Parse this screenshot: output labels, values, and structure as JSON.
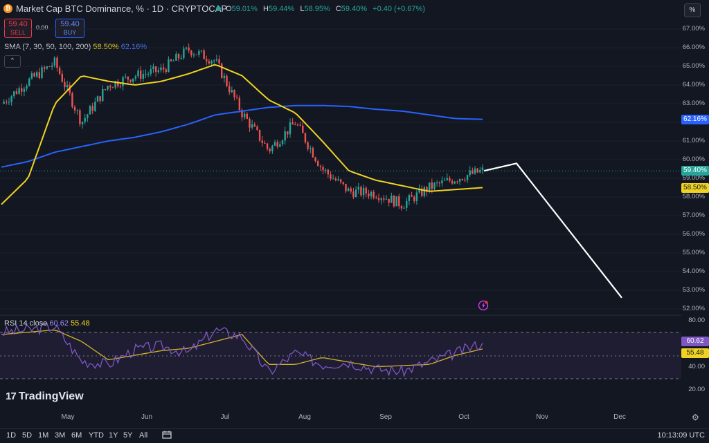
{
  "header": {
    "coin_glyph": "₿",
    "symbol_title": "Market Cap BTC Dominance, % · 1D · CRYPTOCAP",
    "ohlc": [
      {
        "k": "O",
        "v": "59.01%"
      },
      {
        "k": "H",
        "v": "59.44%"
      },
      {
        "k": "L",
        "v": "58.95%"
      },
      {
        "k": "C",
        "v": "59.40%"
      },
      {
        "k": "",
        "v": "+0.40 (+0.67%)"
      }
    ]
  },
  "trade": {
    "sell_price": "59.40",
    "sell_label": "SELL",
    "spread": "0.00",
    "buy_price": "59.40",
    "buy_label": "BUY"
  },
  "indicators": {
    "sma_label": "SMA (7, 30, 50, 100, 200)",
    "sma_value_1": "58.50%",
    "sma_value_2": "62.16%",
    "collapse_glyph": "⌃",
    "rsi_label": "RSI 14 close",
    "rsi_value": "60.62",
    "rsi_ma_value": "55.48"
  },
  "price_axis": {
    "unit_button": "%",
    "ticks": [
      "67.00%",
      "66.00%",
      "65.00%",
      "64.00%",
      "63.00%",
      "62.00%",
      "61.00%",
      "60.00%",
      "59.00%",
      "58.00%",
      "57.00%",
      "56.00%",
      "55.00%",
      "54.00%",
      "53.00%",
      "52.00%"
    ],
    "badges": [
      {
        "text": "62.16%",
        "color": "#2962ff"
      },
      {
        "text": "59.40%",
        "color": "#26a69a"
      },
      {
        "text": "58.50%",
        "color": "#f0d321"
      }
    ]
  },
  "rsi_axis": {
    "ticks": [
      "80.00",
      "40.00",
      "20.00"
    ],
    "badges": [
      {
        "text": "60.62",
        "color": "#7e57c2"
      },
      {
        "text": "55.48",
        "color": "#f0d321"
      }
    ]
  },
  "time_axis": [
    "May",
    "Jun",
    "Jul",
    "Aug",
    "Sep",
    "Oct",
    "Nov",
    "Dec"
  ],
  "branding": {
    "logo_mark": "17",
    "logo_text": "TradingView"
  },
  "bottom": {
    "timeframes": [
      "1D",
      "5D",
      "1M",
      "3M",
      "6M",
      "YTD",
      "1Y",
      "5Y",
      "All"
    ],
    "clock": "10:13:09 UTC"
  },
  "colors": {
    "background": "#131722",
    "up": "#26a69a",
    "down": "#ef5350",
    "sma_fast": "#f0d321",
    "sma_slow": "#2962ff",
    "rsi": "#7e57c2",
    "projection": "#ffffff"
  },
  "chart_data": {
    "type": "candlestick",
    "price_series_anchor": {
      "dates": [
        "Apr 1",
        "Apr 15",
        "May 1",
        "May 10",
        "May 20",
        "Jun 1",
        "Jun 15",
        "Jun 25",
        "Jul 5",
        "Jul 15",
        "Jul 25",
        "Aug 5",
        "Aug 15",
        "Aug 25",
        "Sep 5",
        "Sep 15",
        "Sep 25",
        "Oct 5",
        "Oct 10"
      ],
      "close": [
        63.0,
        64.2,
        65.2,
        62.0,
        64.0,
        64.5,
        64.8,
        65.9,
        65.3,
        62.5,
        60.5,
        62.0,
        59.5,
        58.3,
        58.2,
        57.6,
        58.5,
        59.0,
        59.4
      ]
    },
    "sma_fast_anchor": [
      57.6,
      59.0,
      63.0,
      64.5,
      64.2,
      64.0,
      64.2,
      64.6,
      65.1,
      64.5,
      63.2,
      62.5,
      61.0,
      59.4,
      58.9,
      58.6,
      58.3,
      58.4,
      58.5
    ],
    "sma_slow_anchor": [
      59.6,
      59.9,
      60.4,
      60.7,
      61.0,
      61.2,
      61.5,
      61.9,
      62.4,
      62.6,
      62.8,
      62.9,
      62.9,
      62.85,
      62.7,
      62.6,
      62.4,
      62.2,
      62.16
    ],
    "projection_line": {
      "dates": [
        "Oct 10",
        "Oct 20",
        "Dec 1"
      ],
      "values": [
        59.4,
        59.8,
        52.6
      ]
    },
    "rsi_anchor": [
      70,
      72,
      75,
      45,
      42,
      55,
      58,
      52,
      72,
      66,
      35,
      52,
      42,
      44,
      38,
      36,
      44,
      52,
      60.62
    ],
    "rsi_ma_anchor": [
      68,
      70,
      72,
      62,
      46,
      50,
      54,
      56,
      62,
      68,
      42,
      42,
      48,
      44,
      40,
      41,
      42,
      50,
      55.48
    ],
    "current_price": 59.4
  }
}
